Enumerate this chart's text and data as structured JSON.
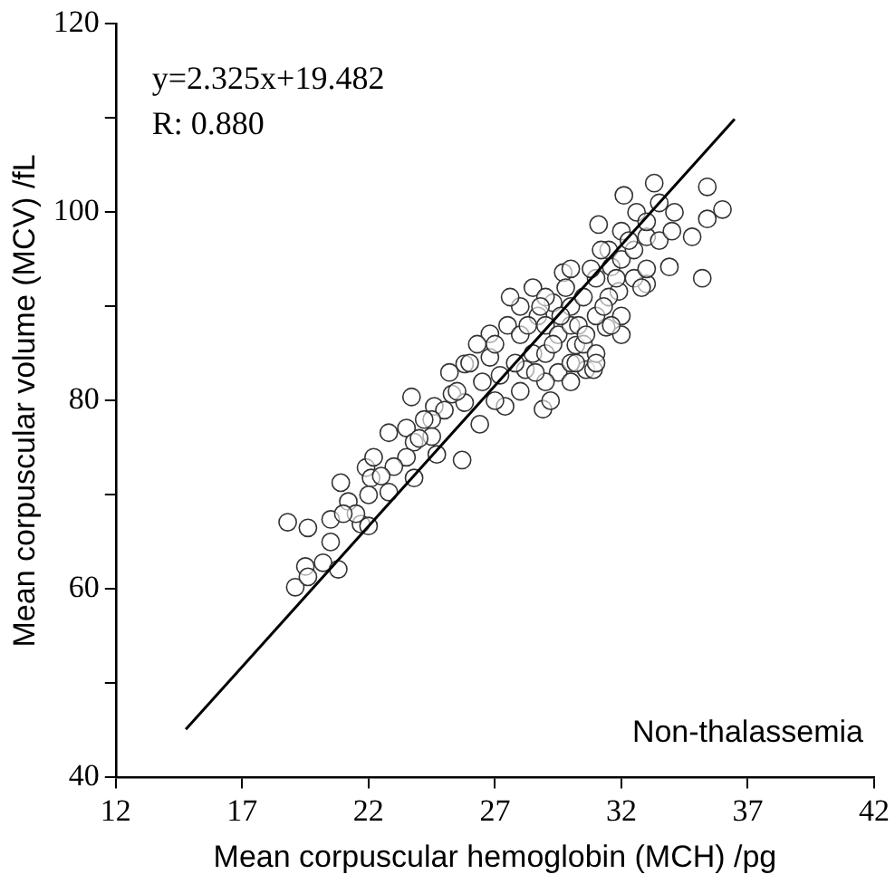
{
  "chart_data": {
    "type": "scatter",
    "xlabel": "Mean corpuscular hemoglobin (MCH) /pg",
    "ylabel": "Mean corpuscular volume (MCV) /fL",
    "xlim": [
      12,
      42
    ],
    "xticks": [
      12,
      17,
      22,
      27,
      32,
      37,
      42
    ],
    "ylim": [
      40,
      120
    ],
    "yticks": [
      40,
      {
        "value": 50,
        "label": null
      },
      60,
      {
        "value": 70,
        "label": null
      },
      80,
      {
        "value": 90,
        "label": null
      },
      100,
      {
        "value": 110,
        "label": null
      },
      120
    ],
    "grid": false,
    "legend": false,
    "annotations": [
      "y=2.325x+19.482",
      "R: 0.880",
      "Non-thalassemia"
    ],
    "series": [
      {
        "type": "scatter",
        "color": "#333333",
        "marker": "circle",
        "x": [
          18.8,
          19.6,
          19.1,
          19.5,
          19.6,
          20.2,
          20.8,
          20.5,
          20.9,
          21.2,
          21.7,
          22.0,
          21.9,
          22.1,
          22.8,
          23.5,
          23.7,
          23.8,
          23.8,
          22.8,
          24.5,
          24.7,
          24.6,
          25.3,
          25.7,
          25.8,
          25.8,
          26.4,
          26.8,
          27.2,
          26.8,
          27.4,
          28.2,
          28.9,
          28.7,
          29.3,
          29.7,
          30.2,
          30.6,
          30.9,
          31.4,
          31.9,
          31.1,
          32.1,
          33.0,
          33.3,
          33.9,
          34.8,
          35.4,
          36.0,
          35.2,
          35.4,
          34.1,
          33.0,
          31.6,
          32.6,
          27,
          27.5,
          28,
          28,
          28.5,
          28.5,
          29,
          29,
          29,
          29.5,
          29.5,
          30,
          30,
          30,
          30,
          30.5,
          30.5,
          31,
          31,
          31,
          31.5,
          31.5,
          32,
          32,
          32,
          32.5,
          32.5,
          33,
          33,
          33.5,
          34,
          27,
          26.5,
          26,
          25.5,
          25,
          24.5,
          24,
          23.5,
          23,
          22.5,
          22,
          21.5,
          21,
          20.5,
          28,
          29,
          30,
          31,
          32,
          27.8,
          28.3,
          28.8,
          29.3,
          29.8,
          30.3,
          30.8,
          31.3,
          31.8,
          32.3,
          27.6,
          28.6,
          29.6,
          30.6,
          31.6,
          32.8,
          33.5,
          26.3,
          25.2,
          24.2,
          22.2,
          29.2,
          30.2,
          31.2
        ],
        "values": [
          67.1,
          66.5,
          60.2,
          62.4,
          61.3,
          62.8,
          62.1,
          67.4,
          71.3,
          69.3,
          66.9,
          66.7,
          72.9,
          71.8,
          76.6,
          77.1,
          80.4,
          75.6,
          71.8,
          70.3,
          76.2,
          74.3,
          79.4,
          80.7,
          73.7,
          83.9,
          79.8,
          77.5,
          87.1,
          82.7,
          84.6,
          79.4,
          83.3,
          79.1,
          89.0,
          90.4,
          93.6,
          85.9,
          83.3,
          83.3,
          87.8,
          91.6,
          98.7,
          101.8,
          97.4,
          103.1,
          94.2,
          97.4,
          102.7,
          100.3,
          93.0,
          99.3,
          100.0,
          92.4,
          94.2,
          100.0,
          86,
          88,
          87,
          90,
          85,
          92,
          88,
          85,
          91,
          87,
          83,
          90,
          94,
          88,
          84,
          91,
          86,
          93,
          89,
          85,
          96,
          91,
          95,
          89,
          98,
          93,
          96,
          99,
          94,
          97,
          98,
          80,
          82,
          84,
          81,
          79,
          78,
          76,
          74,
          73,
          72,
          70,
          68,
          68,
          65,
          81,
          82,
          82,
          84,
          87,
          84,
          88,
          90,
          86,
          92,
          88,
          94,
          90,
          93,
          97,
          91,
          83,
          89,
          87,
          88,
          92,
          101,
          86,
          83,
          78,
          74,
          80,
          84,
          96
        ]
      },
      {
        "type": "line",
        "color": "#000000",
        "marker": "none",
        "line_style": "solid",
        "x": [
          14.77,
          36.48
        ],
        "values": [
          45.1,
          109.9
        ]
      }
    ]
  }
}
